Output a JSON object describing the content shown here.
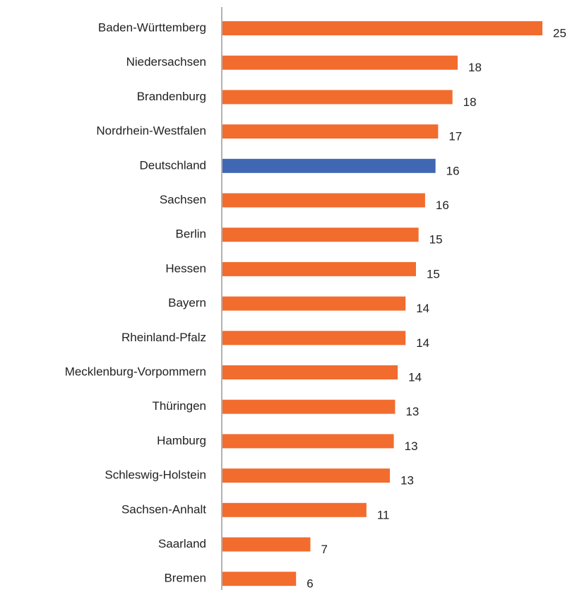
{
  "chart_data": {
    "type": "bar",
    "orientation": "horizontal",
    "categories": [
      "Baden-Württemberg",
      "Niedersachsen",
      "Brandenburg",
      "Nordrhein-Westfalen",
      "Deutschland",
      "Sachsen",
      "Berlin",
      "Hessen",
      "Bayern",
      "Rheinland-Pfalz",
      "Mecklenburg-Vorpommern",
      "Thüringen",
      "Hamburg",
      "Schleswig-Holstein",
      "Sachsen-Anhalt",
      "Saarland",
      "Bremen"
    ],
    "values": [
      24.6,
      18.1,
      17.7,
      16.6,
      16.4,
      15.6,
      15.1,
      14.9,
      14.1,
      14.1,
      13.5,
      13.3,
      13.2,
      12.9,
      11.1,
      6.8,
      5.7
    ],
    "value_labels": [
      "25",
      "18",
      "18",
      "17",
      "16",
      "16",
      "15",
      "15",
      "14",
      "14",
      "14",
      "13",
      "13",
      "13",
      "11",
      "7",
      "6"
    ],
    "colors": [
      "#f26c2e",
      "#f26c2e",
      "#f26c2e",
      "#f26c2e",
      "#4068b2",
      "#f26c2e",
      "#f26c2e",
      "#f26c2e",
      "#f26c2e",
      "#f26c2e",
      "#f26c2e",
      "#f26c2e",
      "#f26c2e",
      "#f26c2e",
      "#f26c2e",
      "#f26c2e",
      "#f26c2e"
    ]
  }
}
